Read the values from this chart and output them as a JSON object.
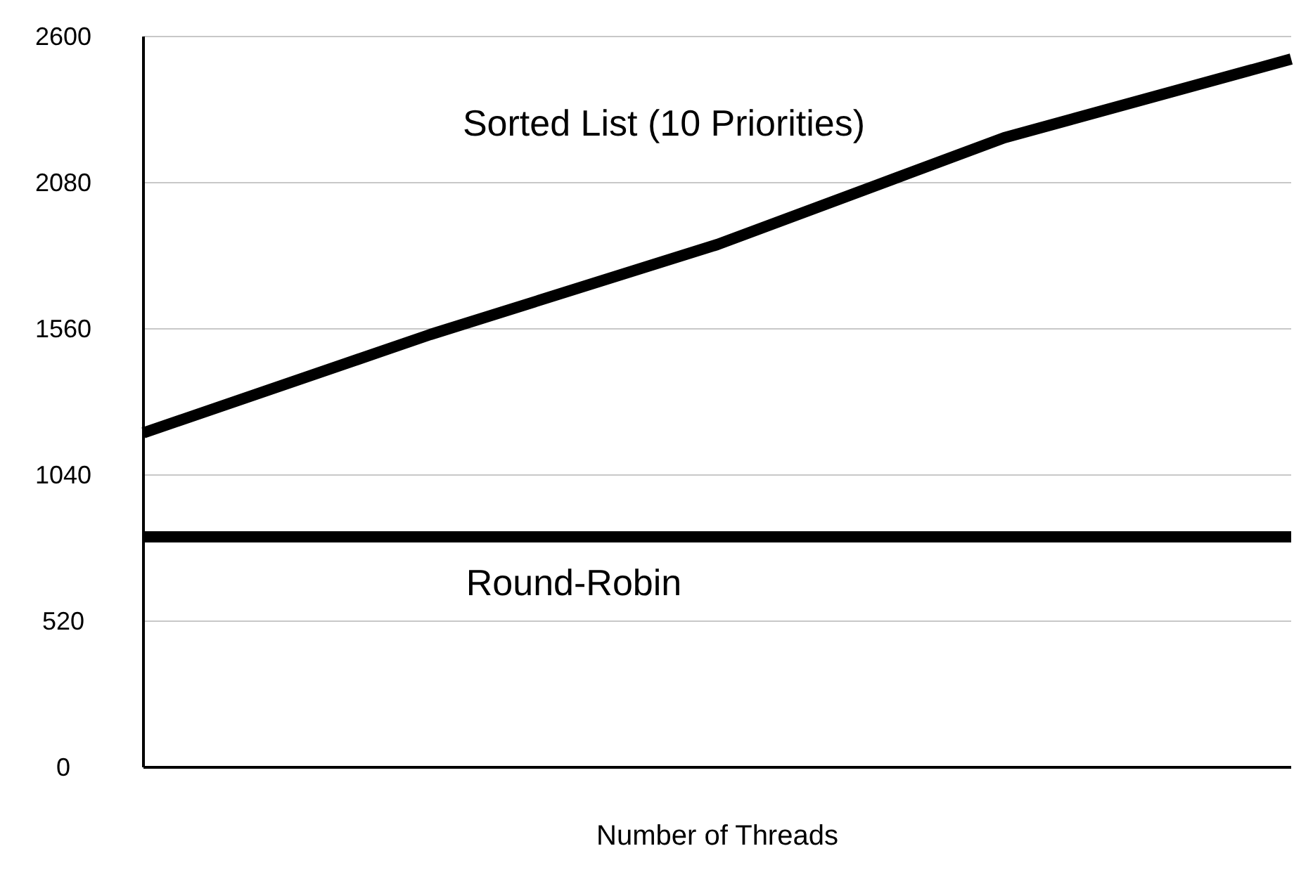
{
  "chart_data": {
    "type": "line",
    "xlabel": "Number of Threads",
    "categories": [
      null,
      null,
      null,
      null,
      null
    ],
    "series": [
      {
        "name": "Sorted List (10 Priorities)",
        "color": "#000000",
        "values": [
          1190,
          1540,
          1860,
          2240,
          2520
        ]
      },
      {
        "name": "Round-Robin",
        "color": "#000000",
        "values": [
          820,
          820,
          820,
          820,
          820
        ]
      }
    ],
    "ylim": [
      0,
      2600
    ],
    "yticks": [
      0,
      520,
      1040,
      1560,
      2080,
      2600
    ],
    "grid": "y",
    "legend": false,
    "marker": "none",
    "line_style": "solid"
  }
}
